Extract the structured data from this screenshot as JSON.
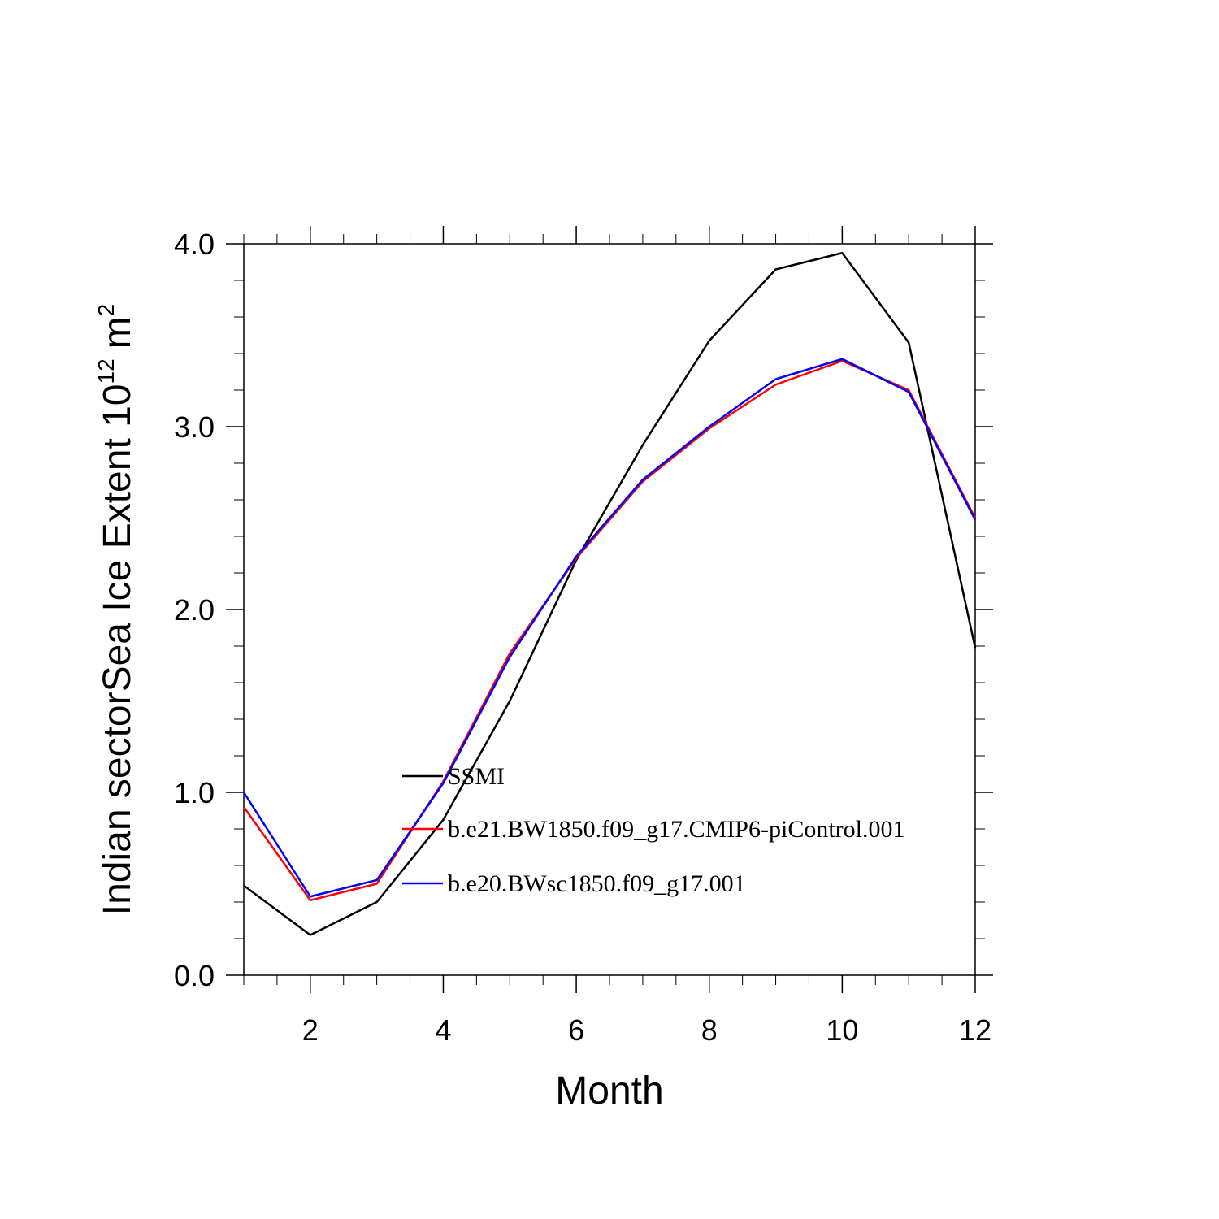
{
  "chart_data": {
    "type": "line",
    "title": "",
    "xlabel": "Month",
    "ylabel_main": "Indian sectorSea Ice Extent 10",
    "ylabel_sup": "12",
    "ylabel_unit": "m",
    "ylabel_unit_sup": "2",
    "xlim": [
      1,
      12
    ],
    "ylim": [
      0,
      4
    ],
    "x_ticks": [
      2,
      4,
      6,
      8,
      10,
      12
    ],
    "x_tick_labels": [
      "2",
      "4",
      "6",
      "8",
      "10",
      "12"
    ],
    "y_ticks": [
      0,
      1,
      2,
      3,
      4
    ],
    "y_tick_labels": [
      "0.0",
      "1.0",
      "2.0",
      "3.0",
      "4.0"
    ],
    "x": [
      1,
      2,
      3,
      4,
      5,
      6,
      7,
      8,
      9,
      10,
      11,
      12
    ],
    "series": [
      {
        "name": "SSMI",
        "color": "#000000",
        "values": [
          0.49,
          0.22,
          0.4,
          0.85,
          1.5,
          2.27,
          2.9,
          3.47,
          3.86,
          3.95,
          3.46,
          1.79
        ]
      },
      {
        "name": "b.e21.BW1850.f09_g17.CMIP6-piControl.001",
        "color": "#ff0000",
        "values": [
          0.92,
          0.41,
          0.5,
          1.06,
          1.76,
          2.28,
          2.7,
          2.99,
          3.23,
          3.36,
          3.2,
          2.5
        ]
      },
      {
        "name": "b.e20.BWsc1850.f09_g17.001",
        "color": "#0000ff",
        "values": [
          1.0,
          0.43,
          0.52,
          1.05,
          1.74,
          2.29,
          2.71,
          3.0,
          3.26,
          3.37,
          3.19,
          2.49
        ]
      }
    ],
    "legend_position": "center"
  }
}
